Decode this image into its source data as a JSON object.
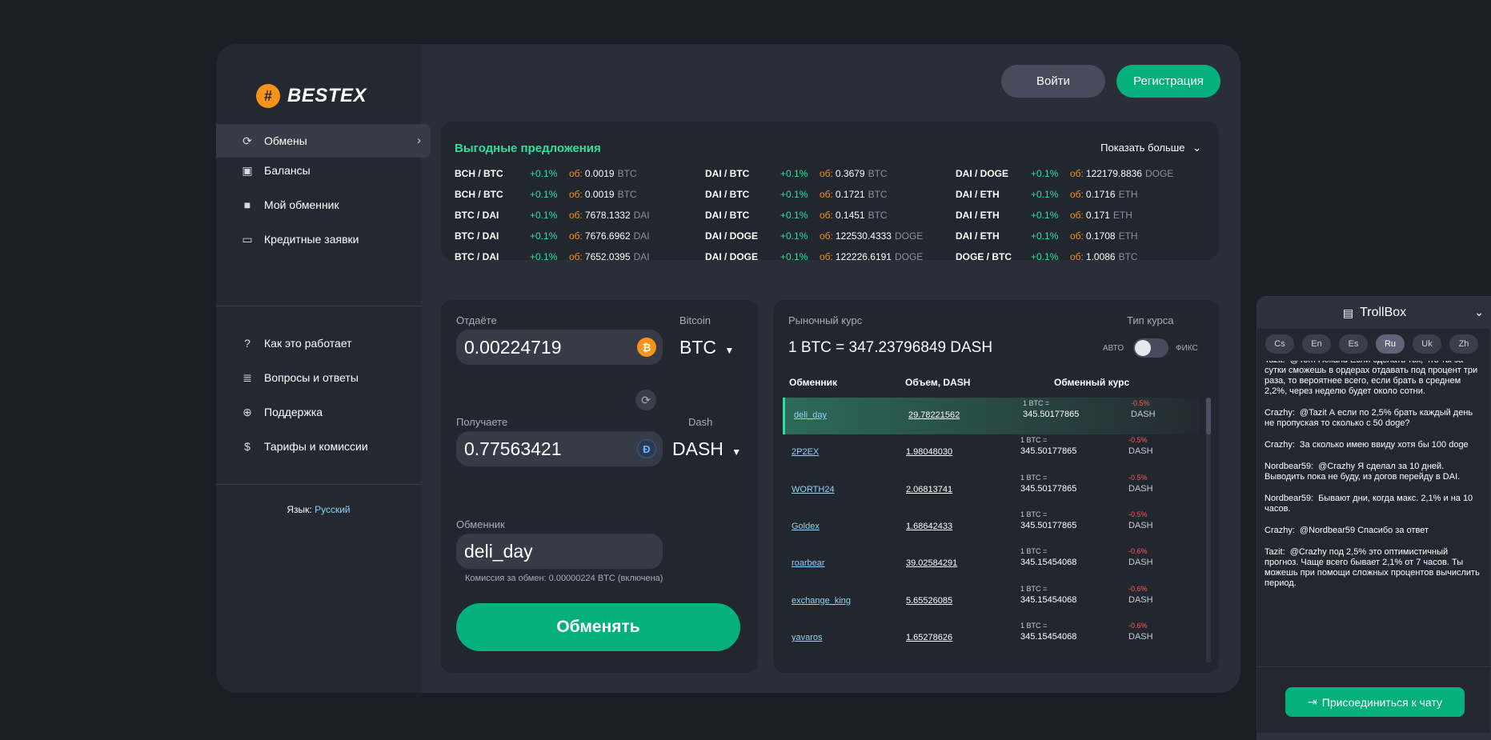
{
  "brand": {
    "logo_mark": "#",
    "name": "BESTEX"
  },
  "header": {
    "login": "Войти",
    "register": "Регистрация"
  },
  "sidebar": {
    "items": [
      {
        "label": "Обмены",
        "icon": "exchange-icon"
      },
      {
        "label": "Балансы",
        "icon": "wallet-icon"
      },
      {
        "label": "Мой обменник",
        "icon": "briefcase-icon"
      },
      {
        "label": "Кредитные заявки",
        "icon": "credit-card-icon"
      }
    ],
    "help_items": [
      {
        "label": "Как это работает",
        "icon": "question-icon"
      },
      {
        "label": "Вопросы и ответы",
        "icon": "document-icon"
      },
      {
        "label": "Поддержка",
        "icon": "lifebuoy-icon"
      },
      {
        "label": "Тарифы и комиссии",
        "icon": "dollar-file-icon"
      }
    ],
    "language_label": "Язык:",
    "language_value": "Русский"
  },
  "offers": {
    "title": "Выгодные предложения",
    "show_more": "Показать больше",
    "vol_label": "об:",
    "columns": [
      [
        {
          "pair": "BCH / BTC",
          "change": "+0.1%",
          "volume": "0.0019",
          "currency": "BTC"
        },
        {
          "pair": "BCH / BTC",
          "change": "+0.1%",
          "volume": "0.0019",
          "currency": "BTC"
        },
        {
          "pair": "BTC / DAI",
          "change": "+0.1%",
          "volume": "7678.1332",
          "currency": "DAI"
        },
        {
          "pair": "BTC / DAI",
          "change": "+0.1%",
          "volume": "7676.6962",
          "currency": "DAI"
        },
        {
          "pair": "BTC / DAI",
          "change": "+0.1%",
          "volume": "7652.0395",
          "currency": "DAI"
        }
      ],
      [
        {
          "pair": "DAI / BTC",
          "change": "+0.1%",
          "volume": "0.3679",
          "currency": "BTC"
        },
        {
          "pair": "DAI / BTC",
          "change": "+0.1%",
          "volume": "0.1721",
          "currency": "BTC"
        },
        {
          "pair": "DAI / BTC",
          "change": "+0.1%",
          "volume": "0.1451",
          "currency": "BTC"
        },
        {
          "pair": "DAI / DOGE",
          "change": "+0.1%",
          "volume": "122530.4333",
          "currency": "DOGE"
        },
        {
          "pair": "DAI / DOGE",
          "change": "+0.1%",
          "volume": "122226.6191",
          "currency": "DOGE"
        }
      ],
      [
        {
          "pair": "DAI / DOGE",
          "change": "+0.1%",
          "volume": "122179.8836",
          "currency": "DOGE"
        },
        {
          "pair": "DAI / ETH",
          "change": "+0.1%",
          "volume": "0.1716",
          "currency": "ETH"
        },
        {
          "pair": "DAI / ETH",
          "change": "+0.1%",
          "volume": "0.171",
          "currency": "ETH"
        },
        {
          "pair": "DAI / ETH",
          "change": "+0.1%",
          "volume": "0.1708",
          "currency": "ETH"
        },
        {
          "pair": "DOGE / BTC",
          "change": "+0.1%",
          "volume": "1.0086",
          "currency": "BTC"
        }
      ]
    ]
  },
  "exchange": {
    "give_label": "Отдаёте",
    "give_currency_name": "Bitcoin",
    "give_value": "0.00224719",
    "give_currency": "BTC",
    "get_label": "Получаете",
    "get_currency_name": "Dash",
    "get_value": "0.77563421",
    "get_currency": "DASH",
    "exchanger_label": "Обменник",
    "exchanger_value": "deli_day",
    "fee_text": "Комиссия за обмен: 0.00000224 BTC (включена)",
    "submit": "Обменять"
  },
  "market": {
    "title": "Рыночный курс",
    "rate": "1 BTC = 347.23796849 DASH",
    "rate_type_label": "Тип курса",
    "toggle_auto": "АВТО",
    "toggle_fix": "ФИКС",
    "headers": {
      "exchanger": "Обменник",
      "volume": "Объем, DASH",
      "rate": "Обменный курс"
    },
    "rows": [
      {
        "name": "deli_day",
        "volume": "29.78221562",
        "unit": "1 BTC =",
        "rate": "345.50177865",
        "change": "-0.5%",
        "currency": "DASH"
      },
      {
        "name": "2P2EX",
        "volume": "1.98048030",
        "unit": "1 BTC =",
        "rate": "345.50177865",
        "change": "-0.5%",
        "currency": "DASH"
      },
      {
        "name": "WORTH24",
        "volume": "2.06813741",
        "unit": "1 BTC =",
        "rate": "345.50177865",
        "change": "-0.5%",
        "currency": "DASH"
      },
      {
        "name": "Goldex",
        "volume": "1.68642433",
        "unit": "1 BTC =",
        "rate": "345.50177865",
        "change": "-0.5%",
        "currency": "DASH"
      },
      {
        "name": "roarbear",
        "volume": "39.02584291",
        "unit": "1 BTC =",
        "rate": "345.15454068",
        "change": "-0.6%",
        "currency": "DASH"
      },
      {
        "name": "exchange_king",
        "volume": "5.65526085",
        "unit": "1 BTC =",
        "rate": "345.15454068",
        "change": "-0.6%",
        "currency": "DASH"
      },
      {
        "name": "yavaros",
        "volume": "1.65278626",
        "unit": "1 BTC =",
        "rate": "345.15454068",
        "change": "-0.6%",
        "currency": "DASH"
      }
    ]
  },
  "trollbox": {
    "title": "TrollBox",
    "languages": [
      "Cs",
      "En",
      "Es",
      "Ru",
      "Uk",
      "Zh"
    ],
    "active_language": "Ru",
    "messages": [
      {
        "user": "Tazit:",
        "text": "@Tom Holland Если сделать так, что ты за сутки сможешь в ордерах отдавать под процент три раза, то вероятнее всего, если брать в среднем 2,2%, через неделю будет около сотни."
      },
      {
        "user": "Crazhy:",
        "text": "@Tazit А если по 2,5% брать каждый день не пропуская то сколько с 50 doge?"
      },
      {
        "user": "Crazhy:",
        "text": "За сколько имею ввиду хотя бы 100 doge"
      },
      {
        "user": "Nordbear59:",
        "text": "@Crazhy Я сделал за 10 дней. Выводить пока не буду, из догов перейду в DAI."
      },
      {
        "user": "Nordbear59:",
        "text": "Бывают дни, когда макс. 2,1% и на 10 часов."
      },
      {
        "user": "Crazhy:",
        "text": "@Nordbear59 Спасибо за ответ"
      },
      {
        "user": "Tazit:",
        "text": "@Crazhy под 2,5% это оптимистичный прогноз. Чаще всего бывает 2,1% от 7 часов. Ты можешь при помощи сложных процентов вычислить период."
      }
    ],
    "join": "Присоединиться к чату"
  },
  "colors": {
    "accent": "#06b07c",
    "positive": "#2ee0a0",
    "negative": "#ff5a5a",
    "volume_label": "#f7931a",
    "link": "#8fd4f5"
  }
}
